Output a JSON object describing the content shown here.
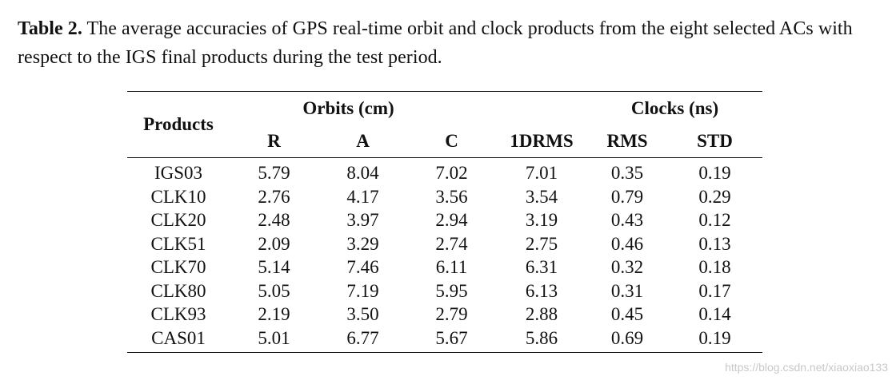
{
  "caption": {
    "label": "Table 2.",
    "text": "The average accuracies of GPS real-time orbit and clock products from the eight selected ACs with respect to the IGS final products during the test period."
  },
  "table": {
    "header": {
      "products": "Products",
      "orbits_group": "Orbits (cm)",
      "clocks_group": "Clocks (ns)",
      "columns": [
        "R",
        "A",
        "C",
        "1DRMS",
        "RMS",
        "STD"
      ]
    },
    "rows": [
      {
        "product": "IGS03",
        "values": [
          "5.79",
          "8.04",
          "7.02",
          "7.01",
          "0.35",
          "0.19"
        ]
      },
      {
        "product": "CLK10",
        "values": [
          "2.76",
          "4.17",
          "3.56",
          "3.54",
          "0.79",
          "0.29"
        ]
      },
      {
        "product": "CLK20",
        "values": [
          "2.48",
          "3.97",
          "2.94",
          "3.19",
          "0.43",
          "0.12"
        ]
      },
      {
        "product": "CLK51",
        "values": [
          "2.09",
          "3.29",
          "2.74",
          "2.75",
          "0.46",
          "0.13"
        ]
      },
      {
        "product": "CLK70",
        "values": [
          "5.14",
          "7.46",
          "6.11",
          "6.31",
          "0.32",
          "0.18"
        ]
      },
      {
        "product": "CLK80",
        "values": [
          "5.05",
          "7.19",
          "5.95",
          "6.13",
          "0.31",
          "0.17"
        ]
      },
      {
        "product": "CLK93",
        "values": [
          "2.19",
          "3.50",
          "2.79",
          "2.88",
          "0.45",
          "0.14"
        ]
      },
      {
        "product": "CAS01",
        "values": [
          "5.01",
          "6.77",
          "5.67",
          "5.86",
          "0.69",
          "0.19"
        ]
      }
    ]
  },
  "watermark": "https://blog.csdn.net/xiaoxiao133"
}
